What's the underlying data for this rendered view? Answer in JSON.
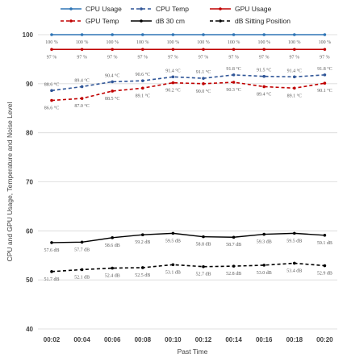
{
  "chart_data": {
    "type": "line",
    "xlabel": "Past Time",
    "ylabel": "CPU and GPU Usage, Temperature and Noise Level",
    "ylim": [
      40,
      100
    ],
    "yticks": [
      40,
      50,
      60,
      70,
      80,
      90,
      100
    ],
    "grid": true,
    "legend_placement": "top",
    "categories": [
      "00:02",
      "00:04",
      "00:06",
      "00:08",
      "00:10",
      "00:12",
      "00:14",
      "00:16",
      "00:18",
      "00:20"
    ],
    "series": [
      {
        "name": "CPU Usage",
        "color": "#2e75b6",
        "dashed": false,
        "values": [
          100,
          100,
          100,
          100,
          100,
          100,
          100,
          100,
          100,
          100
        ],
        "labels": [
          "100 %",
          "100 %",
          "100 %",
          "100 %",
          "100 %",
          "100 %",
          "100 %",
          "100 %",
          "100 %",
          "100 %"
        ],
        "label_position": "below"
      },
      {
        "name": "CPU Temp",
        "color": "#2f5597",
        "dashed": true,
        "values": [
          88.6,
          89.4,
          90.4,
          90.6,
          91.4,
          91.1,
          91.8,
          91.5,
          91.4,
          91.8
        ],
        "labels": [
          "88.6 °C",
          "89.4 °C",
          "90.4 °C",
          "90.6 °C",
          "91.4 °C",
          "91.1 °C",
          "91.8 °C",
          "91.5 °C",
          "91.4 °C",
          "91.8 °C"
        ],
        "label_position": "above"
      },
      {
        "name": "GPU Usage",
        "color": "#c00000",
        "dashed": false,
        "values": [
          97,
          97,
          97,
          97,
          97,
          97,
          97,
          97,
          97,
          97
        ],
        "labels": [
          "97 %",
          "97 %",
          "97 %",
          "97 %",
          "97 %",
          "97 %",
          "97 %",
          "97 %",
          "97 %",
          "97 %"
        ],
        "label_position": "below"
      },
      {
        "name": "GPU Temp",
        "color": "#c00000",
        "dashed": true,
        "values": [
          86.6,
          87.0,
          88.5,
          89.1,
          90.2,
          90.0,
          90.3,
          89.4,
          89.1,
          90.1
        ],
        "labels": [
          "86.6 °C",
          "87.0 °C",
          "88.5 °C",
          "89.1 °C",
          "90.2 °C",
          "90.0 °C",
          "90.3 °C",
          "89.4 °C",
          "89.1 °C",
          "90.1 °C"
        ],
        "label_position": "below"
      },
      {
        "name": "dB 30 cm",
        "color": "#000000",
        "dashed": false,
        "values": [
          57.6,
          57.7,
          58.6,
          59.2,
          59.5,
          58.8,
          58.7,
          59.3,
          59.5,
          59.1
        ],
        "labels": [
          "57.6 dB",
          "57.7 dB",
          "58.6 dB",
          "59.2 dB",
          "59.5 dB",
          "58.8 dB",
          "58.7 dB",
          "59.3 dB",
          "59.5 dB",
          "59.1 dB"
        ],
        "label_position": "below"
      },
      {
        "name": "dB Sitting Position",
        "color": "#000000",
        "dashed": true,
        "values": [
          51.7,
          52.1,
          52.4,
          52.5,
          53.1,
          52.7,
          52.8,
          53.0,
          53.4,
          52.9
        ],
        "labels": [
          "51.7 dB",
          "52.1 dB",
          "52.4 dB",
          "52.5 dB",
          "53.1 dB",
          "52.7 dB",
          "52.8 dB",
          "53.0 dB",
          "53.4 dB",
          "52.9 dB"
        ],
        "label_position": "below"
      }
    ]
  }
}
